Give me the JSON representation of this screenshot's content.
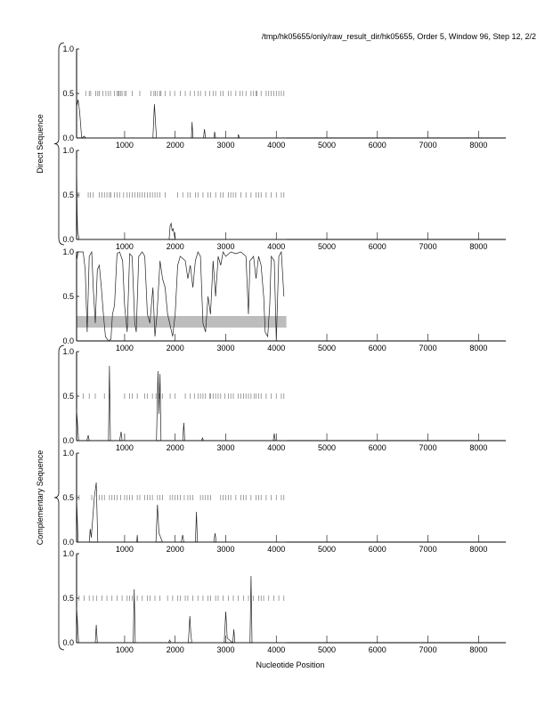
{
  "title": "/tmp/hk05655/only/raw_result_dir/hk05655, Order 5, Window 96, Step 12, 2/2",
  "chart_data": {
    "type": "line",
    "xlabel": "Nucleotide Position",
    "group_labels": {
      "direct": "Direct Sequence",
      "complementary": "Complementary Sequence"
    },
    "xlim": [
      50,
      8540
    ],
    "ylim": [
      0,
      1
    ],
    "xticks": [
      1000,
      2000,
      3000,
      4000,
      5000,
      6000,
      7000,
      8000
    ],
    "xtick_labels": [
      "1000",
      "2000",
      "3000",
      "4000",
      "5000",
      "6000",
      "7000",
      "8000"
    ],
    "yticks": [
      0,
      0.5,
      1
    ],
    "ytick_labels": [
      "0.0",
      "0.5",
      "1.0"
    ],
    "panels": [
      {
        "name": "direct-frame-1",
        "group": "direct",
        "series": [
          [
            50,
            0.35
          ],
          [
            80,
            0.43
          ],
          [
            110,
            0.3
          ],
          [
            150,
            0
          ],
          [
            200,
            0.02
          ],
          [
            230,
            0
          ],
          [
            1560,
            0
          ],
          [
            1590,
            0.38
          ],
          [
            1630,
            0
          ],
          [
            2320,
            0
          ],
          [
            2335,
            0.18
          ],
          [
            2350,
            0
          ],
          [
            2560,
            0
          ],
          [
            2580,
            0.1
          ],
          [
            2600,
            0
          ],
          [
            2770,
            0
          ],
          [
            2780,
            0.07
          ],
          [
            2800,
            0
          ],
          [
            3240,
            0
          ],
          [
            3250,
            0.04
          ],
          [
            3270,
            0
          ],
          [
            4200,
            0
          ]
        ],
        "stop_marks": [
          230,
          300,
          330,
          430,
          470,
          500,
          570,
          630,
          680,
          720,
          800,
          850,
          880,
          890,
          920,
          950,
          1000,
          1030,
          1150,
          1300,
          1520,
          1580,
          1610,
          1650,
          1700,
          1720,
          1800,
          1900,
          1990,
          2100,
          2200,
          2300,
          2380,
          2450,
          2500,
          2600,
          2680,
          2750,
          2800,
          2900,
          2950,
          3050,
          3100,
          3200,
          3280,
          3330,
          3400,
          3500,
          3550,
          3600,
          3620,
          3700,
          3800,
          3850,
          3900,
          3950,
          4000,
          4050,
          4100,
          4150
        ]
      },
      {
        "name": "direct-frame-2",
        "group": "direct",
        "series": [
          [
            50,
            0.9
          ],
          [
            60,
            0.3
          ],
          [
            70,
            0.1
          ],
          [
            100,
            0
          ],
          [
            1880,
            0
          ],
          [
            1900,
            0.15
          ],
          [
            1920,
            0.18
          ],
          [
            1940,
            0.1
          ],
          [
            1960,
            0.12
          ],
          [
            2000,
            0
          ],
          [
            4200,
            0
          ]
        ],
        "stop_marks": [
          70,
          100,
          280,
          320,
          380,
          500,
          550,
          600,
          650,
          700,
          730,
          800,
          850,
          900,
          980,
          1050,
          1100,
          1150,
          1200,
          1260,
          1300,
          1350,
          1400,
          1450,
          1500,
          1550,
          1600,
          1650,
          1700,
          1800,
          2050,
          2150,
          2250,
          2300,
          2400,
          2450,
          2550,
          2650,
          2700,
          2800,
          2900,
          2950,
          3050,
          3100,
          3150,
          3200,
          3300,
          3400,
          3500,
          3600,
          3650,
          3700,
          3800,
          3900,
          4000,
          4100,
          4150
        ]
      },
      {
        "name": "noncoding",
        "group": "none",
        "band": [
          0.15,
          0.28
        ],
        "series": [
          [
            50,
            0.9
          ],
          [
            80,
            1
          ],
          [
            180,
            1
          ],
          [
            220,
            0.8
          ],
          [
            260,
            0.1
          ],
          [
            300,
            0.95
          ],
          [
            350,
            1
          ],
          [
            380,
            0.6
          ],
          [
            420,
            0.2
          ],
          [
            460,
            0.8
          ],
          [
            500,
            0.85
          ],
          [
            540,
            0.6
          ],
          [
            580,
            0.3
          ],
          [
            620,
            0.05
          ],
          [
            680,
            0
          ],
          [
            730,
            0.02
          ],
          [
            760,
            0.3
          ],
          [
            800,
            0.4
          ],
          [
            850,
            0.98
          ],
          [
            900,
            1
          ],
          [
            960,
            0.9
          ],
          [
            1000,
            0.4
          ],
          [
            1050,
            0.1
          ],
          [
            1100,
            0.98
          ],
          [
            1150,
            0.95
          ],
          [
            1200,
            0.2
          ],
          [
            1230,
            0.1
          ],
          [
            1280,
            0.95
          ],
          [
            1350,
            1
          ],
          [
            1400,
            0.95
          ],
          [
            1450,
            0.3
          ],
          [
            1500,
            0.2
          ],
          [
            1560,
            0.6
          ],
          [
            1600,
            0.05
          ],
          [
            1640,
            0.3
          ],
          [
            1700,
            0.9
          ],
          [
            1750,
            0.7
          ],
          [
            1800,
            0.6
          ],
          [
            1850,
            0.3
          ],
          [
            1950,
            0.05
          ],
          [
            2000,
            0.3
          ],
          [
            2050,
            0.85
          ],
          [
            2100,
            0.95
          ],
          [
            2200,
            0.9
          ],
          [
            2250,
            0.7
          ],
          [
            2300,
            0.85
          ],
          [
            2350,
            0.6
          ],
          [
            2400,
            0.9
          ],
          [
            2450,
            1
          ],
          [
            2500,
            0.95
          ],
          [
            2550,
            0.2
          ],
          [
            2600,
            0.1
          ],
          [
            2650,
            0.5
          ],
          [
            2700,
            0.3
          ],
          [
            2750,
            0.9
          ],
          [
            2800,
            0.5
          ],
          [
            2850,
            0.95
          ],
          [
            2900,
            0.85
          ],
          [
            2950,
            1
          ],
          [
            3000,
            0.95
          ],
          [
            3100,
            1
          ],
          [
            3200,
            0.98
          ],
          [
            3300,
            1
          ],
          [
            3400,
            0.95
          ],
          [
            3450,
            0.3
          ],
          [
            3480,
            0.9
          ],
          [
            3550,
            0.95
          ],
          [
            3600,
            0.7
          ],
          [
            3650,
            0.95
          ],
          [
            3700,
            0.85
          ],
          [
            3750,
            0.5
          ],
          [
            3780,
            0.1
          ],
          [
            3830,
            0.05
          ],
          [
            3870,
            0.4
          ],
          [
            3900,
            0.95
          ],
          [
            3960,
            0.9
          ],
          [
            4000,
            0
          ],
          [
            4050,
            0.95
          ],
          [
            4100,
            1
          ],
          [
            4150,
            0.5
          ]
        ]
      },
      {
        "name": "complementary-frame-1",
        "group": "complementary",
        "series": [
          [
            50,
            0.35
          ],
          [
            90,
            0
          ],
          [
            250,
            0
          ],
          [
            280,
            0.06
          ],
          [
            300,
            0
          ],
          [
            680,
            0
          ],
          [
            700,
            0.84
          ],
          [
            720,
            0
          ],
          [
            900,
            0
          ],
          [
            930,
            0.1
          ],
          [
            950,
            0
          ],
          [
            1630,
            0
          ],
          [
            1660,
            0.78
          ],
          [
            1680,
            0.3
          ],
          [
            1700,
            0.75
          ],
          [
            1720,
            0
          ],
          [
            2150,
            0
          ],
          [
            2170,
            0.2
          ],
          [
            2190,
            0
          ],
          [
            2520,
            0
          ],
          [
            2540,
            0.03
          ],
          [
            2560,
            0
          ],
          [
            3940,
            0
          ],
          [
            3960,
            0.08
          ],
          [
            3980,
            0
          ],
          [
            4200,
            0
          ]
        ],
        "stop_marks": [
          60,
          180,
          300,
          420,
          600,
          700,
          1000,
          1100,
          1150,
          1250,
          1400,
          1450,
          1550,
          1620,
          1680,
          1700,
          1750,
          1900,
          2000,
          2200,
          2300,
          2380,
          2450,
          2500,
          2550,
          2600,
          2680,
          2700,
          2750,
          2800,
          2850,
          2900,
          2980,
          3050,
          3100,
          3150,
          3250,
          3300,
          3350,
          3400,
          3450,
          3500,
          3560,
          3600,
          3650,
          3700,
          3800,
          3900,
          4000,
          4100,
          4150
        ]
      },
      {
        "name": "complementary-frame-2",
        "group": "complementary",
        "series": [
          [
            50,
            0.5
          ],
          [
            80,
            0
          ],
          [
            300,
            0
          ],
          [
            320,
            0.15
          ],
          [
            340,
            0.05
          ],
          [
            400,
            0.5
          ],
          [
            440,
            0.67
          ],
          [
            470,
            0
          ],
          [
            1240,
            0
          ],
          [
            1250,
            0.08
          ],
          [
            1260,
            0
          ],
          [
            1620,
            0
          ],
          [
            1650,
            0.42
          ],
          [
            1680,
            0.1
          ],
          [
            1750,
            0
          ],
          [
            2120,
            0
          ],
          [
            2150,
            0.08
          ],
          [
            2170,
            0
          ],
          [
            2400,
            0
          ],
          [
            2420,
            0.34
          ],
          [
            2440,
            0
          ],
          [
            2760,
            0
          ],
          [
            2790,
            0.1
          ],
          [
            2810,
            0
          ],
          [
            4200,
            0
          ]
        ],
        "stop_marks": [
          60,
          100,
          350,
          500,
          550,
          600,
          700,
          750,
          800,
          850,
          920,
          1000,
          1050,
          1100,
          1150,
          1250,
          1300,
          1400,
          1450,
          1500,
          1550,
          1650,
          1700,
          1750,
          1900,
          1950,
          2000,
          2050,
          2100,
          2180,
          2250,
          2300,
          2350,
          2500,
          2550,
          2600,
          2650,
          2700,
          2900,
          2950,
          3000,
          3050,
          3100,
          3200,
          3300,
          3350,
          3400,
          3500,
          3600,
          3650,
          3700,
          3800,
          3900,
          4000,
          4100,
          4150
        ]
      },
      {
        "name": "complementary-frame-3",
        "group": "complementary",
        "series": [
          [
            50,
            0.4
          ],
          [
            90,
            0
          ],
          [
            420,
            0
          ],
          [
            440,
            0.2
          ],
          [
            460,
            0
          ],
          [
            1170,
            0
          ],
          [
            1190,
            0.6
          ],
          [
            1210,
            0
          ],
          [
            1870,
            0
          ],
          [
            1890,
            0.03
          ],
          [
            1920,
            0
          ],
          [
            2260,
            0
          ],
          [
            2290,
            0.3
          ],
          [
            2310,
            0.1
          ],
          [
            2330,
            0
          ],
          [
            2970,
            0
          ],
          [
            3000,
            0.35
          ],
          [
            3030,
            0.05
          ],
          [
            3140,
            0
          ],
          [
            3160,
            0.15
          ],
          [
            3180,
            0
          ],
          [
            3480,
            0
          ],
          [
            3500,
            0.75
          ],
          [
            3520,
            0
          ],
          [
            4200,
            0
          ]
        ],
        "stop_marks": [
          100,
          200,
          300,
          380,
          450,
          550,
          650,
          750,
          850,
          950,
          1050,
          1100,
          1150,
          1250,
          1350,
          1450,
          1500,
          1600,
          1700,
          1850,
          1950,
          2050,
          2100,
          2200,
          2250,
          2350,
          2450,
          2550,
          2650,
          2700,
          2800,
          2850,
          2950,
          3050,
          3150,
          3250,
          3350,
          3450,
          3550,
          3650,
          3700,
          3750,
          3850,
          3950,
          4050,
          4150
        ]
      }
    ]
  }
}
